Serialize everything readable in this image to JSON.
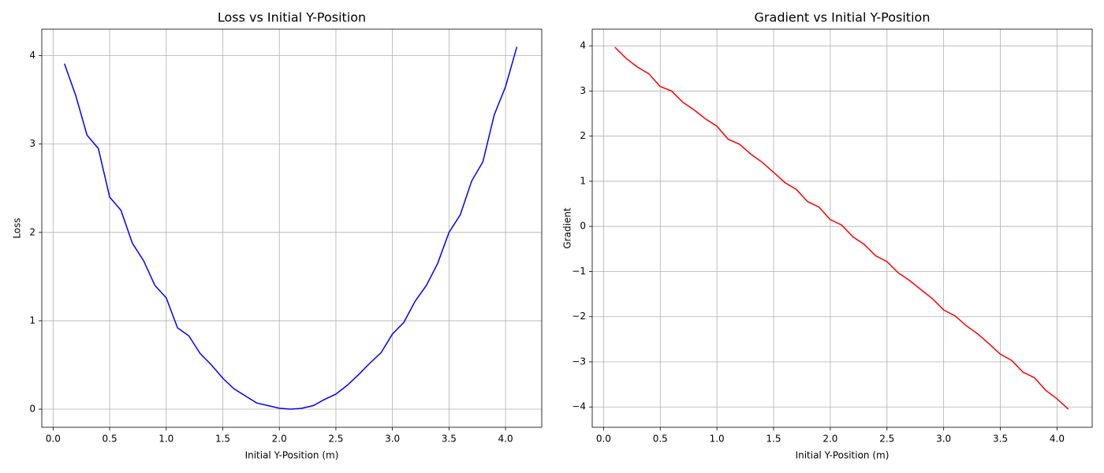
{
  "chart_data": [
    {
      "type": "line",
      "title": "Loss vs Initial Y-Position",
      "xlabel": "Initial Y-Position (m)",
      "ylabel": "Loss",
      "color": "#0000ff",
      "grid": true,
      "x": [
        0.1,
        0.2,
        0.3,
        0.4,
        0.5,
        0.6,
        0.7,
        0.8,
        0.9,
        1.0,
        1.1,
        1.2,
        1.3,
        1.4,
        1.5,
        1.6,
        1.7,
        1.8,
        1.9,
        2.0,
        2.1,
        2.2,
        2.3,
        2.4,
        2.5,
        2.6,
        2.7,
        2.8,
        2.9,
        3.0,
        3.1,
        3.2,
        3.3,
        3.4,
        3.5,
        3.6,
        3.7,
        3.8,
        3.9,
        4.0,
        4.1
      ],
      "values": [
        3.91,
        3.55,
        3.1,
        2.95,
        2.4,
        2.25,
        1.88,
        1.68,
        1.4,
        1.26,
        0.92,
        0.83,
        0.63,
        0.5,
        0.35,
        0.23,
        0.15,
        0.07,
        0.04,
        0.01,
        0.0,
        0.01,
        0.04,
        0.11,
        0.17,
        0.27,
        0.39,
        0.52,
        0.64,
        0.85,
        0.98,
        1.22,
        1.4,
        1.65,
        2.0,
        2.2,
        2.58,
        2.8,
        3.33,
        3.65,
        4.1
      ],
      "xlim": [
        -0.1,
        4.32
      ],
      "ylim": [
        -0.205,
        4.3
      ],
      "xticks": [
        {
          "value": 0,
          "label": "0.0"
        },
        {
          "value": 0.5,
          "label": "0.5"
        },
        {
          "value": 1,
          "label": "1.0"
        },
        {
          "value": 1.5,
          "label": "1.5"
        },
        {
          "value": 2,
          "label": "2.0"
        },
        {
          "value": 2.5,
          "label": "2.5"
        },
        {
          "value": 3,
          "label": "3.0"
        },
        {
          "value": 3.5,
          "label": "3.5"
        },
        {
          "value": 4,
          "label": "4.0"
        }
      ],
      "yticks": [
        0,
        1,
        2,
        3,
        4
      ]
    },
    {
      "type": "line",
      "title": "Gradient vs Initial Y-Position",
      "xlabel": "Initial Y-Position (m)",
      "ylabel": "Gradient",
      "color": "#ff0000",
      "grid": true,
      "x": [
        0.1,
        0.2,
        0.3,
        0.4,
        0.5,
        0.6,
        0.7,
        0.8,
        0.9,
        1.0,
        1.1,
        1.2,
        1.3,
        1.4,
        1.5,
        1.6,
        1.7,
        1.8,
        1.9,
        2.0,
        2.1,
        2.2,
        2.3,
        2.4,
        2.5,
        2.6,
        2.7,
        2.8,
        2.9,
        3.0,
        3.1,
        3.2,
        3.3,
        3.4,
        3.5,
        3.6,
        3.7,
        3.8,
        3.9,
        4.0,
        4.1
      ],
      "values": [
        3.97,
        3.72,
        3.53,
        3.38,
        3.1,
        3.0,
        2.75,
        2.58,
        2.38,
        2.22,
        1.93,
        1.82,
        1.6,
        1.42,
        1.2,
        0.97,
        0.82,
        0.55,
        0.43,
        0.15,
        0.03,
        -0.23,
        -0.4,
        -0.65,
        -0.78,
        -1.03,
        -1.2,
        -1.4,
        -1.6,
        -1.85,
        -1.98,
        -2.2,
        -2.38,
        -2.6,
        -2.83,
        -2.97,
        -3.23,
        -3.35,
        -3.63,
        -3.82,
        -4.05
      ],
      "xlim": [
        -0.1,
        4.31
      ],
      "ylim": [
        -4.45,
        4.37
      ],
      "xticks": [
        {
          "value": 0,
          "label": "0.0"
        },
        {
          "value": 0.5,
          "label": "0.5"
        },
        {
          "value": 1,
          "label": "1.0"
        },
        {
          "value": 1.5,
          "label": "1.5"
        },
        {
          "value": 2,
          "label": "2.0"
        },
        {
          "value": 2.5,
          "label": "2.5"
        },
        {
          "value": 3,
          "label": "3.0"
        },
        {
          "value": 3.5,
          "label": "3.5"
        },
        {
          "value": 4,
          "label": "4.0"
        }
      ],
      "yticks": [
        {
          "value": -4,
          "label": "−4"
        },
        {
          "value": -3,
          "label": "−3"
        },
        {
          "value": -2,
          "label": "−2"
        },
        {
          "value": -1,
          "label": "−1"
        },
        0,
        1,
        2,
        3,
        4
      ]
    }
  ]
}
